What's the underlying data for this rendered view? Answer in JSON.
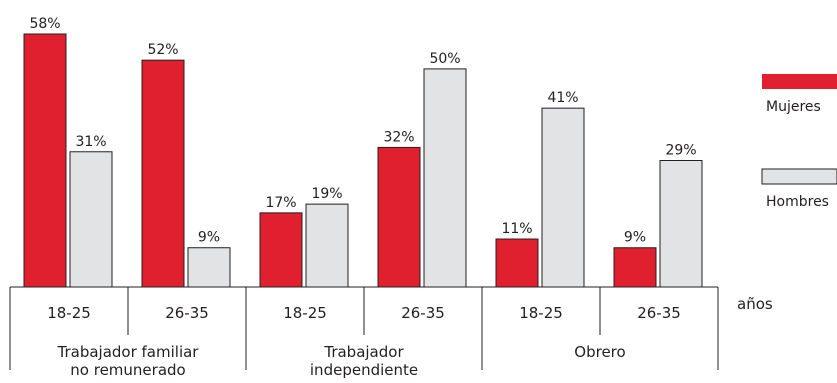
{
  "chart_data": {
    "type": "bar",
    "groups": [
      {
        "label_lines": [
          "Trabajador familiar",
          "no remunerado"
        ],
        "categories": [
          "18-25",
          "26-35"
        ]
      },
      {
        "label_lines": [
          "Trabajador",
          "independiente"
        ],
        "categories": [
          "18-25",
          "26-35"
        ]
      },
      {
        "label_lines": [
          "Obrero"
        ],
        "categories": [
          "18-25",
          "26-35"
        ]
      }
    ],
    "categories": [
      "18-25",
      "26-35",
      "18-25",
      "26-35",
      "18-25",
      "26-35"
    ],
    "series": [
      {
        "name": "Mujeres",
        "color": "#e01f2f",
        "values": [
          58,
          52,
          17,
          32,
          11,
          9
        ]
      },
      {
        "name": "Hombres",
        "color": "#e2e3e5",
        "values": [
          31,
          9,
          19,
          50,
          41,
          29
        ]
      }
    ],
    "value_suffix": "%",
    "axis_unit_label": "años",
    "ylim": [
      0,
      60
    ],
    "grid": false,
    "legend_position": "right"
  }
}
